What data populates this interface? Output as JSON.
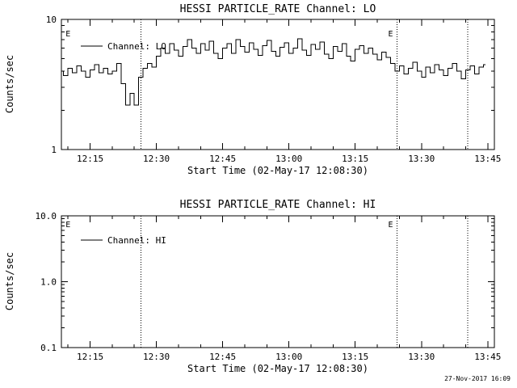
{
  "page": {
    "timestamp": "27-Nov-2017 16:09",
    "background_color": "#ffffff",
    "foreground_color": "#000000"
  },
  "chart_data": [
    {
      "type": "line",
      "title": "HESSI PARTICLE_RATE Channel: LO",
      "legend": "Channel: LO",
      "legend_position": "upper-left inside",
      "xlabel": "Start Time (02-May-17 12:08:30)",
      "ylabel": "Counts/sec",
      "yscale": "log",
      "grid": false,
      "ylim": [
        1,
        10
      ],
      "ytick_values": [
        1,
        10
      ],
      "ytick_labels": [
        "1",
        "10"
      ],
      "x_start_minutes": 0,
      "x_end_minutes": 98,
      "xtick_minutes": [
        6.5,
        21.5,
        36.5,
        51.5,
        66.5,
        81.5,
        96.5
      ],
      "xtick_labels": [
        "12:15",
        "12:30",
        "12:45",
        "13:00",
        "13:15",
        "13:30",
        "13:45"
      ],
      "xminor_first_minute": 1.5,
      "xminor_step_minutes": 5,
      "dotted_lines_minutes": [
        18,
        76,
        92
      ],
      "event_markers": [
        {
          "label": "E",
          "minute": 1.5
        },
        {
          "label": "E",
          "minute": 74.5
        }
      ],
      "series": [
        {
          "name": "Channel: LO",
          "x_first_minute": 0,
          "x_step_minutes": 1,
          "values": [
            4.0,
            3.7,
            4.2,
            3.9,
            4.4,
            4.0,
            3.6,
            4.1,
            4.5,
            3.9,
            4.2,
            3.8,
            4.0,
            4.6,
            3.2,
            2.2,
            2.7,
            2.2,
            3.6,
            4.2,
            4.6,
            4.3,
            5.2,
            6.0,
            5.5,
            6.5,
            5.8,
            5.2,
            6.2,
            7.0,
            6.0,
            5.5,
            6.5,
            5.8,
            6.8,
            5.5,
            5.0,
            6.0,
            6.5,
            5.5,
            7.0,
            6.2,
            5.6,
            6.6,
            5.9,
            5.3,
            6.3,
            6.9,
            5.7,
            5.2,
            6.1,
            6.6,
            5.5,
            6.0,
            7.1,
            5.8,
            5.3,
            6.4,
            5.9,
            6.7,
            5.4,
            5.0,
            6.2,
            5.7,
            6.5,
            5.2,
            4.8,
            5.9,
            6.3,
            5.5,
            6.0,
            5.4,
            4.9,
            5.6,
            5.1,
            4.6,
            4.0,
            4.4,
            3.8,
            4.2,
            4.7,
            4.0,
            3.6,
            4.3,
            3.9,
            4.5,
            4.1,
            3.7,
            4.2,
            4.6,
            4.0,
            3.5,
            4.1,
            4.4,
            3.8,
            4.3,
            4.5
          ]
        }
      ]
    },
    {
      "type": "line",
      "title": "HESSI PARTICLE_RATE Channel: HI",
      "legend": "Channel: HI",
      "legend_position": "upper-left inside",
      "xlabel": "Start Time (02-May-17 12:08:30)",
      "ylabel": "Counts/sec",
      "yscale": "log",
      "grid": false,
      "ylim": [
        0.1,
        10
      ],
      "ytick_values": [
        0.1,
        1,
        10
      ],
      "ytick_labels": [
        "0.1",
        "1.0",
        "10.0"
      ],
      "x_start_minutes": 0,
      "x_end_minutes": 98,
      "xtick_minutes": [
        6.5,
        21.5,
        36.5,
        51.5,
        66.5,
        81.5,
        96.5
      ],
      "xtick_labels": [
        "12:15",
        "12:30",
        "12:45",
        "13:00",
        "13:15",
        "13:30",
        "13:45"
      ],
      "xminor_first_minute": 1.5,
      "xminor_step_minutes": 5,
      "dotted_lines_minutes": [
        18,
        76,
        92
      ],
      "event_markers": [
        {
          "label": "E",
          "minute": 1.5
        },
        {
          "label": "E",
          "minute": 74.5
        }
      ],
      "series": [
        {
          "name": "Channel: HI",
          "x_first_minute": 0,
          "x_step_minutes": 1,
          "values": []
        }
      ]
    }
  ]
}
